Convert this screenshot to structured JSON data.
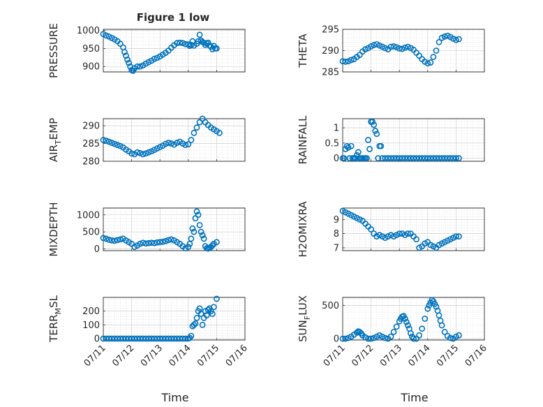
{
  "figure_title": "Figure 1 low",
  "chart_data": [
    {
      "type": "scatter",
      "title": "Figure 1 low",
      "ylabel": "PRESSURE",
      "ylim": [
        885,
        1003
      ],
      "yticks": [
        900,
        950,
        1000
      ],
      "xlim": [
        0,
        5
      ],
      "xticks": [
        0,
        1,
        2,
        3,
        4,
        5
      ],
      "xticklabels": [
        "07/11",
        "07/12",
        "07/13",
        "07/14",
        "07/15",
        "07/16"
      ],
      "grid": "on",
      "marker": "circle",
      "color": "#0072BD",
      "x": [
        0.0,
        0.1,
        0.2,
        0.3,
        0.4,
        0.5,
        0.6,
        0.7,
        0.75,
        0.8,
        0.85,
        0.9,
        0.95,
        1.0,
        1.05,
        1.1,
        1.2,
        1.3,
        1.4,
        1.5,
        1.6,
        1.7,
        1.8,
        1.9,
        2.0,
        2.1,
        2.2,
        2.3,
        2.4,
        2.5,
        2.6,
        2.7,
        2.8,
        2.9,
        3.0,
        3.05,
        3.1,
        3.15,
        3.2,
        3.3,
        3.35,
        3.4,
        3.45,
        3.5,
        3.55,
        3.6,
        3.65,
        3.7,
        3.75,
        3.8,
        3.85,
        3.9,
        3.95,
        4.0
      ],
      "y": [
        990,
        986,
        983,
        979,
        975,
        970,
        963,
        953,
        940,
        930,
        919,
        910,
        900,
        890,
        888,
        895,
        900,
        900,
        903,
        908,
        912,
        916,
        921,
        924,
        928,
        933,
        938,
        944,
        952,
        959,
        965,
        966,
        965,
        962,
        961,
        957,
        960,
        970,
        958,
        963,
        970,
        988,
        972,
        968,
        966,
        960,
        964,
        966,
        958,
        955,
        948,
        957,
        950,
        950
      ]
    },
    {
      "type": "scatter",
      "ylabel": "THETA",
      "ylim": [
        285,
        295
      ],
      "yticks": [
        285,
        290,
        295
      ],
      "xlim": [
        0,
        5
      ],
      "xticks": [
        0,
        1,
        2,
        3,
        4,
        5
      ],
      "xticklabels": [
        "07/11",
        "07/12",
        "07/13",
        "07/14",
        "07/15",
        "07/16"
      ],
      "grid": "on",
      "marker": "circle",
      "color": "#0072BD",
      "x": [
        0.0,
        0.1,
        0.2,
        0.3,
        0.4,
        0.5,
        0.6,
        0.7,
        0.8,
        0.9,
        1.0,
        1.1,
        1.2,
        1.3,
        1.4,
        1.5,
        1.6,
        1.7,
        1.8,
        1.9,
        2.0,
        2.1,
        2.2,
        2.3,
        2.4,
        2.5,
        2.6,
        2.7,
        2.8,
        2.9,
        3.0,
        3.1,
        3.2,
        3.3,
        3.4,
        3.5,
        3.6,
        3.7,
        3.8,
        3.9,
        4.0,
        4.1
      ],
      "y": [
        287.5,
        287.4,
        287.5,
        287.8,
        288.0,
        288.5,
        289.0,
        289.8,
        290.3,
        290.6,
        291.0,
        291.3,
        291.5,
        291.2,
        290.9,
        290.6,
        290.3,
        290.9,
        291.0,
        290.8,
        290.5,
        290.4,
        290.7,
        290.9,
        290.6,
        290.2,
        289.5,
        288.8,
        288.0,
        287.4,
        287.0,
        287.2,
        288.5,
        290.0,
        292.0,
        293.0,
        293.3,
        293.5,
        293.2,
        292.8,
        292.5,
        292.7
      ]
    },
    {
      "type": "scatter",
      "ylabel": "AIR_TEMP",
      "ylim": [
        280,
        292
      ],
      "yticks": [
        280,
        285,
        290
      ],
      "xlim": [
        0,
        5
      ],
      "xticks": [
        0,
        1,
        2,
        3,
        4,
        5
      ],
      "xticklabels": [
        "07/11",
        "07/12",
        "07/13",
        "07/14",
        "07/15",
        "07/16"
      ],
      "grid": "on",
      "marker": "circle",
      "color": "#0072BD",
      "x": [
        0.0,
        0.1,
        0.2,
        0.3,
        0.4,
        0.5,
        0.6,
        0.7,
        0.8,
        0.9,
        1.0,
        1.1,
        1.2,
        1.3,
        1.4,
        1.5,
        1.6,
        1.7,
        1.8,
        1.9,
        2.0,
        2.1,
        2.2,
        2.3,
        2.4,
        2.5,
        2.6,
        2.7,
        2.8,
        2.9,
        3.0,
        3.1,
        3.2,
        3.3,
        3.4,
        3.5,
        3.6,
        3.7,
        3.8,
        3.9,
        4.0,
        4.1
      ],
      "y": [
        286.0,
        285.8,
        285.5,
        285.2,
        284.9,
        284.6,
        284.3,
        283.9,
        283.3,
        282.8,
        282.2,
        282.0,
        282.5,
        282.3,
        282.0,
        282.2,
        282.5,
        282.8,
        283.2,
        283.6,
        284.0,
        284.4,
        284.9,
        285.2,
        285.0,
        284.7,
        285.2,
        285.5,
        285.0,
        284.6,
        284.8,
        286.0,
        288.0,
        289.5,
        291.0,
        292.0,
        291.0,
        290.2,
        289.5,
        289.0,
        288.5,
        288.0
      ]
    },
    {
      "type": "scatter",
      "ylabel": "RAINFALL",
      "ylim": [
        -0.1,
        1.3
      ],
      "yticks": [
        0,
        0.5,
        1
      ],
      "xlim": [
        0,
        5
      ],
      "xticks": [
        0,
        1,
        2,
        3,
        4,
        5
      ],
      "xticklabels": [
        "07/11",
        "07/12",
        "07/13",
        "07/14",
        "07/15",
        "07/16"
      ],
      "grid": "on",
      "marker": "circle",
      "color": "#0072BD",
      "x": [
        0.0,
        0.05,
        0.1,
        0.15,
        0.2,
        0.25,
        0.3,
        0.35,
        0.4,
        0.45,
        0.5,
        0.55,
        0.6,
        0.65,
        0.7,
        0.75,
        0.8,
        0.85,
        0.9,
        0.95,
        1.0,
        1.05,
        1.1,
        1.15,
        1.2,
        1.25,
        1.3,
        1.35,
        1.4,
        1.5,
        1.6,
        1.7,
        1.8,
        1.9,
        2.0,
        2.1,
        2.2,
        2.3,
        2.4,
        2.5,
        2.6,
        2.7,
        2.8,
        2.9,
        3.0,
        3.1,
        3.2,
        3.3,
        3.4,
        3.5,
        3.6,
        3.7,
        3.8,
        3.9,
        4.0,
        4.1
      ],
      "y": [
        0.0,
        0.0,
        0.3,
        0.4,
        0.35,
        0.0,
        0.4,
        0.0,
        0.0,
        0.0,
        0.1,
        0.2,
        0.0,
        0.0,
        0.0,
        0.0,
        0.0,
        0.0,
        0.6,
        0.3,
        1.2,
        1.2,
        1.1,
        0.9,
        0.8,
        0.0,
        0.4,
        0.4,
        0.0,
        0.0,
        0.0,
        0.0,
        0.0,
        0.0,
        0.0,
        0.0,
        0.0,
        0.0,
        0.0,
        0.0,
        0.0,
        0.0,
        0.0,
        0.0,
        0.0,
        0.0,
        0.0,
        0.0,
        0.0,
        0.0,
        0.0,
        0.0,
        0.0,
        0.0,
        0.0,
        0.0
      ]
    },
    {
      "type": "scatter",
      "ylabel": "MIXDEPTH",
      "ylim": [
        -50,
        1200
      ],
      "yticks": [
        0,
        500,
        1000
      ],
      "xlim": [
        0,
        5
      ],
      "xticks": [
        0,
        1,
        2,
        3,
        4,
        5
      ],
      "xticklabels": [
        "07/11",
        "07/12",
        "07/13",
        "07/14",
        "07/15",
        "07/16"
      ],
      "grid": "on",
      "marker": "circle",
      "color": "#0072BD",
      "x": [
        0.0,
        0.1,
        0.2,
        0.3,
        0.4,
        0.5,
        0.6,
        0.7,
        0.8,
        0.9,
        1.0,
        1.1,
        1.2,
        1.3,
        1.4,
        1.5,
        1.6,
        1.7,
        1.8,
        1.9,
        2.0,
        2.1,
        2.2,
        2.3,
        2.4,
        2.5,
        2.6,
        2.7,
        2.8,
        2.9,
        3.0,
        3.05,
        3.1,
        3.15,
        3.2,
        3.25,
        3.3,
        3.35,
        3.4,
        3.45,
        3.5,
        3.55,
        3.6,
        3.65,
        3.7,
        3.75,
        3.8,
        3.85,
        3.9,
        4.0
      ],
      "y": [
        320,
        300,
        270,
        250,
        240,
        260,
        280,
        300,
        250,
        200,
        150,
        60,
        100,
        150,
        180,
        160,
        170,
        180,
        170,
        190,
        200,
        210,
        230,
        260,
        280,
        250,
        200,
        150,
        80,
        20,
        60,
        150,
        300,
        600,
        500,
        900,
        1100,
        1000,
        700,
        500,
        400,
        300,
        80,
        20,
        10,
        30,
        60,
        100,
        150,
        200
      ]
    },
    {
      "type": "scatter",
      "ylabel": "H2OMIXRA",
      "ylim": [
        6.8,
        9.8
      ],
      "yticks": [
        7,
        8,
        9
      ],
      "xlim": [
        0,
        5
      ],
      "xticks": [
        0,
        1,
        2,
        3,
        4,
        5
      ],
      "xticklabels": [
        "07/11",
        "07/12",
        "07/13",
        "07/14",
        "07/15",
        "07/16"
      ],
      "grid": "on",
      "marker": "circle",
      "color": "#0072BD",
      "x": [
        0.0,
        0.1,
        0.2,
        0.3,
        0.4,
        0.5,
        0.6,
        0.7,
        0.8,
        0.9,
        1.0,
        1.1,
        1.2,
        1.3,
        1.4,
        1.5,
        1.6,
        1.7,
        1.8,
        1.9,
        2.0,
        2.1,
        2.2,
        2.3,
        2.4,
        2.5,
        2.6,
        2.7,
        2.8,
        2.9,
        3.0,
        3.1,
        3.2,
        3.3,
        3.4,
        3.5,
        3.6,
        3.7,
        3.8,
        3.9,
        4.0,
        4.1
      ],
      "y": [
        9.6,
        9.5,
        9.4,
        9.3,
        9.2,
        9.1,
        9.0,
        8.9,
        8.7,
        8.5,
        8.3,
        8.0,
        7.8,
        7.9,
        7.8,
        7.7,
        7.8,
        7.9,
        7.8,
        7.9,
        8.0,
        8.0,
        7.9,
        8.0,
        8.0,
        7.8,
        7.6,
        7.0,
        7.1,
        7.3,
        7.4,
        7.2,
        7.1,
        7.0,
        7.2,
        7.3,
        7.4,
        7.5,
        7.6,
        7.7,
        7.8,
        7.8
      ]
    },
    {
      "type": "scatter",
      "ylabel": "TERR_MSL",
      "ylim": [
        -10,
        300
      ],
      "yticks": [
        0,
        100,
        200
      ],
      "xlim": [
        0,
        5
      ],
      "xticks": [
        0,
        1,
        2,
        3,
        4,
        5
      ],
      "xticklabels": [
        "07/11",
        "07/12",
        "07/13",
        "07/14",
        "07/15",
        "07/16"
      ],
      "grid": "on",
      "marker": "circle",
      "color": "#0072BD",
      "x": [
        0.0,
        0.1,
        0.2,
        0.3,
        0.4,
        0.5,
        0.6,
        0.7,
        0.8,
        0.9,
        1.0,
        1.1,
        1.2,
        1.3,
        1.4,
        1.5,
        1.6,
        1.7,
        1.8,
        1.9,
        2.0,
        2.1,
        2.2,
        2.3,
        2.4,
        2.5,
        2.6,
        2.7,
        2.8,
        2.9,
        3.0,
        3.05,
        3.1,
        3.15,
        3.2,
        3.25,
        3.3,
        3.35,
        3.4,
        3.45,
        3.5,
        3.55,
        3.6,
        3.65,
        3.7,
        3.75,
        3.8,
        3.85,
        3.9,
        4.0
      ],
      "y": [
        0,
        0,
        0,
        0,
        0,
        0,
        0,
        0,
        0,
        0,
        0,
        0,
        0,
        0,
        0,
        0,
        0,
        0,
        0,
        0,
        0,
        0,
        0,
        0,
        0,
        0,
        0,
        0,
        0,
        0,
        0,
        5,
        20,
        90,
        100,
        110,
        150,
        200,
        220,
        180,
        100,
        150,
        200,
        170,
        210,
        220,
        200,
        180,
        230,
        290
      ]
    },
    {
      "type": "scatter",
      "ylabel": "SUN_FLUX",
      "ylim": [
        -20,
        620
      ],
      "yticks": [
        0,
        500
      ],
      "xlim": [
        0,
        5
      ],
      "xticks": [
        0,
        1,
        2,
        3,
        4,
        5
      ],
      "xticklabels": [
        "07/11",
        "07/12",
        "07/13",
        "07/14",
        "07/15",
        "07/16"
      ],
      "grid": "on",
      "marker": "circle",
      "color": "#0072BD",
      "x": [
        0.0,
        0.1,
        0.2,
        0.3,
        0.4,
        0.5,
        0.55,
        0.6,
        0.65,
        0.7,
        0.8,
        0.9,
        1.0,
        1.1,
        1.2,
        1.3,
        1.4,
        1.5,
        1.6,
        1.7,
        1.8,
        1.9,
        2.0,
        2.05,
        2.1,
        2.15,
        2.2,
        2.25,
        2.3,
        2.35,
        2.4,
        2.45,
        2.5,
        2.6,
        2.7,
        2.8,
        2.9,
        3.0,
        3.05,
        3.1,
        3.15,
        3.2,
        3.25,
        3.3,
        3.35,
        3.4,
        3.45,
        3.5,
        3.6,
        3.7,
        3.8,
        3.9,
        4.0,
        4.1
      ],
      "y": [
        0,
        0,
        10,
        30,
        60,
        90,
        110,
        100,
        80,
        50,
        20,
        0,
        0,
        10,
        30,
        50,
        30,
        10,
        0,
        30,
        100,
        180,
        260,
        300,
        330,
        340,
        300,
        250,
        200,
        150,
        80,
        30,
        0,
        0,
        50,
        150,
        300,
        450,
        500,
        540,
        580,
        560,
        520,
        480,
        420,
        350,
        270,
        200,
        100,
        40,
        10,
        0,
        30,
        50
      ]
    }
  ]
}
